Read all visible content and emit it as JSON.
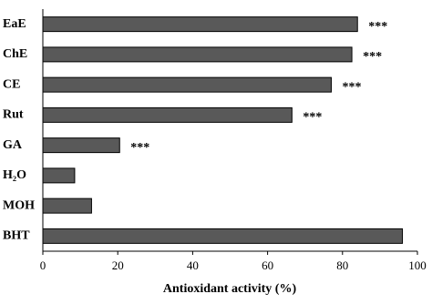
{
  "chart_data": {
    "type": "hbar",
    "categories": [
      "EaE",
      "ChE",
      "CE",
      "Rut",
      "GA",
      "H₂O",
      "MOH",
      "BHT"
    ],
    "values": [
      84,
      82.5,
      77,
      66.5,
      20.5,
      8.5,
      13,
      96
    ],
    "annotations": [
      "***",
      "***",
      "***",
      "***",
      "***",
      null,
      null,
      null
    ],
    "color": "#595959",
    "x_label": "Antioxidant activity (%)",
    "xlim": [
      0,
      100
    ],
    "xticks": [
      0,
      20,
      40,
      60,
      80,
      100
    ]
  }
}
